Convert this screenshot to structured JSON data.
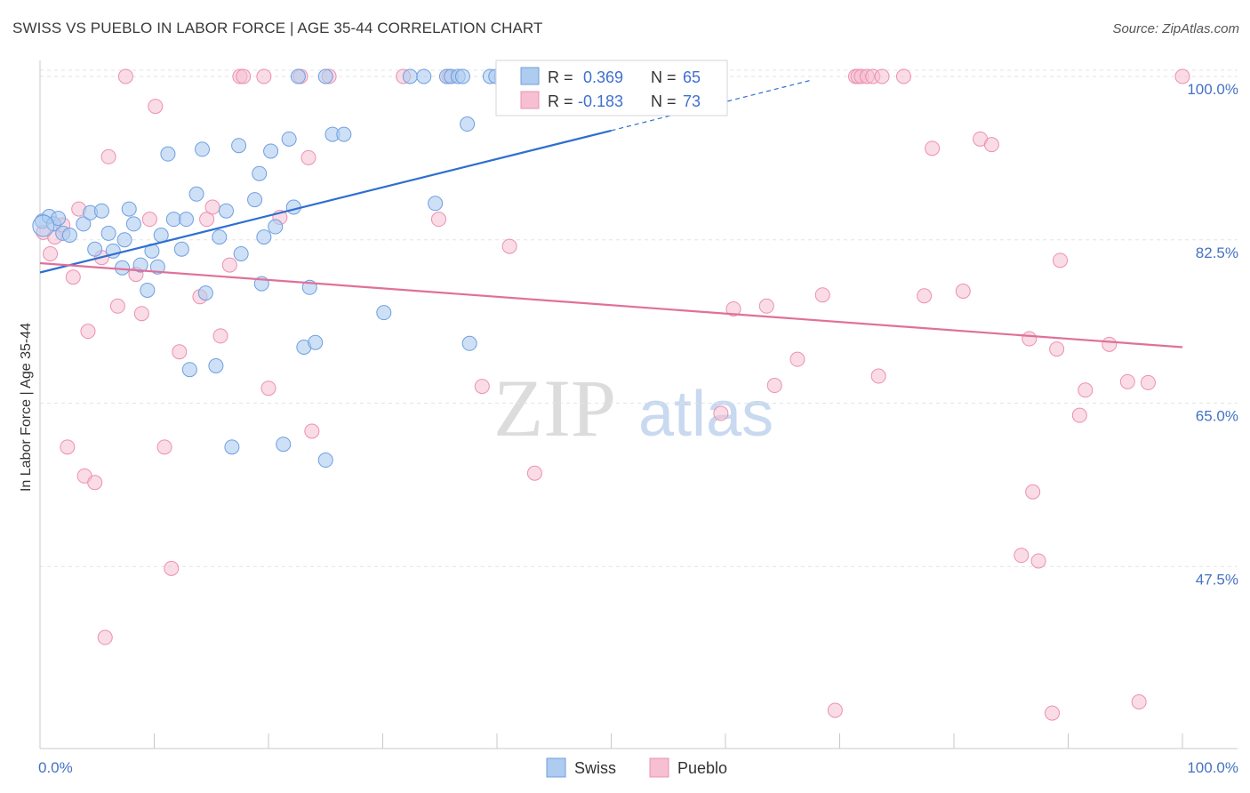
{
  "header": {
    "title": "SWISS VS PUEBLO IN LABOR FORCE | AGE 35-44 CORRELATION CHART",
    "source": "Source: ZipAtlas.com"
  },
  "watermark": {
    "zip": "ZIP",
    "atlas": "atlas"
  },
  "colors": {
    "swiss_fill": "#aecbf0",
    "swiss_stroke": "#6f9fe0",
    "swiss_line": "#2f6fd0",
    "pueblo_fill": "#f6c0d2",
    "pueblo_stroke": "#ec90b0",
    "pueblo_line": "#e0709a",
    "value_text": "#3f6fd0",
    "grid": "#e3e3e3"
  },
  "legend": {
    "swiss": {
      "r_label": "R =",
      "r_value": "0.369",
      "n_label": "N =",
      "n_value": "65"
    },
    "pueblo": {
      "r_label": "R =",
      "r_value": "-0.183",
      "n_label": "N =",
      "n_value": "73"
    }
  },
  "bottom_legend": [
    "Swiss",
    "Pueblo"
  ],
  "chart_data": {
    "type": "scatter",
    "title": "SWISS VS PUEBLO IN LABOR FORCE | AGE 35-44 CORRELATION CHART",
    "xlabel": "",
    "ylabel": "In Labor Force | Age 35-44",
    "xlim": [
      0,
      100
    ],
    "ylim": [
      28,
      102
    ],
    "x_tick_labels": [
      "0.0%",
      "100.0%"
    ],
    "y_ticks": [
      47.5,
      65.0,
      82.5,
      100.0
    ],
    "y_tick_labels": [
      "47.5%",
      "65.0%",
      "82.5%",
      "100.0%"
    ],
    "series": [
      {
        "name": "Swiss",
        "R": 0.369,
        "N": 65,
        "trend": {
          "x": [
            0,
            50
          ],
          "y": [
            79.0,
            94.2
          ],
          "dashed_to": [
            67.5,
            99.6
          ]
        },
        "points": [
          [
            0.2,
            84.5
          ],
          [
            0.8,
            85.0
          ],
          [
            1.2,
            84.2
          ],
          [
            1.6,
            84.8
          ],
          [
            2.0,
            83.2
          ],
          [
            2.6,
            83.0
          ],
          [
            3.8,
            84.2
          ],
          [
            4.4,
            85.4
          ],
          [
            5.4,
            85.6
          ],
          [
            4.8,
            81.5
          ],
          [
            6.0,
            83.2
          ],
          [
            6.4,
            81.3
          ],
          [
            7.2,
            79.5
          ],
          [
            7.4,
            82.5
          ],
          [
            7.8,
            85.8
          ],
          [
            8.2,
            84.2
          ],
          [
            8.8,
            79.8
          ],
          [
            9.4,
            77.1
          ],
          [
            9.8,
            81.3
          ],
          [
            10.3,
            79.6
          ],
          [
            10.6,
            83.0
          ],
          [
            11.2,
            91.7
          ],
          [
            11.7,
            84.7
          ],
          [
            12.4,
            81.5
          ],
          [
            12.8,
            84.7
          ],
          [
            13.1,
            68.6
          ],
          [
            13.7,
            87.4
          ],
          [
            14.2,
            92.2
          ],
          [
            14.5,
            76.8
          ],
          [
            15.4,
            69.0
          ],
          [
            15.7,
            82.8
          ],
          [
            16.3,
            85.6
          ],
          [
            16.8,
            60.3
          ],
          [
            17.4,
            92.6
          ],
          [
            17.6,
            81.0
          ],
          [
            18.8,
            86.8
          ],
          [
            19.2,
            89.6
          ],
          [
            19.4,
            77.8
          ],
          [
            19.6,
            82.8
          ],
          [
            20.2,
            92.0
          ],
          [
            20.6,
            83.9
          ],
          [
            21.3,
            60.6
          ],
          [
            21.8,
            93.3
          ],
          [
            22.2,
            86.0
          ],
          [
            22.6,
            100.0
          ],
          [
            23.1,
            71.0
          ],
          [
            23.6,
            77.4
          ],
          [
            24.1,
            71.5
          ],
          [
            25.0,
            100.0
          ],
          [
            25.6,
            93.8
          ],
          [
            26.6,
            93.8
          ],
          [
            30.1,
            74.7
          ],
          [
            32.4,
            100.0
          ],
          [
            33.6,
            100.0
          ],
          [
            34.6,
            86.4
          ],
          [
            35.6,
            100.0
          ],
          [
            36.0,
            100.0
          ],
          [
            36.6,
            100.0
          ],
          [
            37.0,
            100.0
          ],
          [
            37.6,
            71.4
          ],
          [
            39.4,
            100.0
          ],
          [
            40.4,
            100.0
          ],
          [
            37.4,
            94.9
          ],
          [
            25.0,
            58.9
          ],
          [
            39.9,
            100.0
          ]
        ]
      },
      {
        "name": "Pueblo",
        "R": -0.183,
        "N": 73,
        "trend": {
          "x": [
            0,
            100
          ],
          "y": [
            80.0,
            71.0
          ]
        },
        "points": [
          [
            0.3,
            83.3
          ],
          [
            0.9,
            81.0
          ],
          [
            1.3,
            82.8
          ],
          [
            2.0,
            84.1
          ],
          [
            2.4,
            60.3
          ],
          [
            2.9,
            78.5
          ],
          [
            3.4,
            85.8
          ],
          [
            3.9,
            57.2
          ],
          [
            4.2,
            72.7
          ],
          [
            4.8,
            56.5
          ],
          [
            5.4,
            80.6
          ],
          [
            5.7,
            39.9
          ],
          [
            6.0,
            91.4
          ],
          [
            6.8,
            75.4
          ],
          [
            7.5,
            100.0
          ],
          [
            8.4,
            78.8
          ],
          [
            8.9,
            74.6
          ],
          [
            9.6,
            84.7
          ],
          [
            10.1,
            96.8
          ],
          [
            10.9,
            60.3
          ],
          [
            11.5,
            47.3
          ],
          [
            12.2,
            70.5
          ],
          [
            14.0,
            76.4
          ],
          [
            14.6,
            84.7
          ],
          [
            15.1,
            86.0
          ],
          [
            15.8,
            72.2
          ],
          [
            16.6,
            79.8
          ],
          [
            17.5,
            100.0
          ],
          [
            17.8,
            100.0
          ],
          [
            19.6,
            100.0
          ],
          [
            20.0,
            66.6
          ],
          [
            21.0,
            84.9
          ],
          [
            22.8,
            100.0
          ],
          [
            23.5,
            91.3
          ],
          [
            23.8,
            62.0
          ],
          [
            25.3,
            100.0
          ],
          [
            31.8,
            100.0
          ],
          [
            34.9,
            84.7
          ],
          [
            35.8,
            100.0
          ],
          [
            38.7,
            66.8
          ],
          [
            41.1,
            81.8
          ],
          [
            43.3,
            57.5
          ],
          [
            59.6,
            63.9
          ],
          [
            60.7,
            75.1
          ],
          [
            63.6,
            75.4
          ],
          [
            64.3,
            66.9
          ],
          [
            66.3,
            69.7
          ],
          [
            68.5,
            76.6
          ],
          [
            69.6,
            32.1
          ],
          [
            71.4,
            100.0
          ],
          [
            71.6,
            100.0
          ],
          [
            71.9,
            100.0
          ],
          [
            72.4,
            100.0
          ],
          [
            72.9,
            100.0
          ],
          [
            73.4,
            67.9
          ],
          [
            73.7,
            100.0
          ],
          [
            75.6,
            100.0
          ],
          [
            77.4,
            76.5
          ],
          [
            78.1,
            92.3
          ],
          [
            80.8,
            77.0
          ],
          [
            82.3,
            93.3
          ],
          [
            83.3,
            92.7
          ],
          [
            85.9,
            48.7
          ],
          [
            86.6,
            71.9
          ],
          [
            86.9,
            55.5
          ],
          [
            87.4,
            48.1
          ],
          [
            88.6,
            31.8
          ],
          [
            89.0,
            70.8
          ],
          [
            89.3,
            80.3
          ],
          [
            91.0,
            63.7
          ],
          [
            91.5,
            66.4
          ],
          [
            93.6,
            71.3
          ],
          [
            96.2,
            33.0
          ]
        ]
      }
    ],
    "extra_pueblo_points": [
      [
        95.2,
        67.3
      ],
      [
        97.0,
        67.2
      ],
      [
        100.0,
        100.0
      ]
    ],
    "watermark": "ZIPatlas"
  }
}
